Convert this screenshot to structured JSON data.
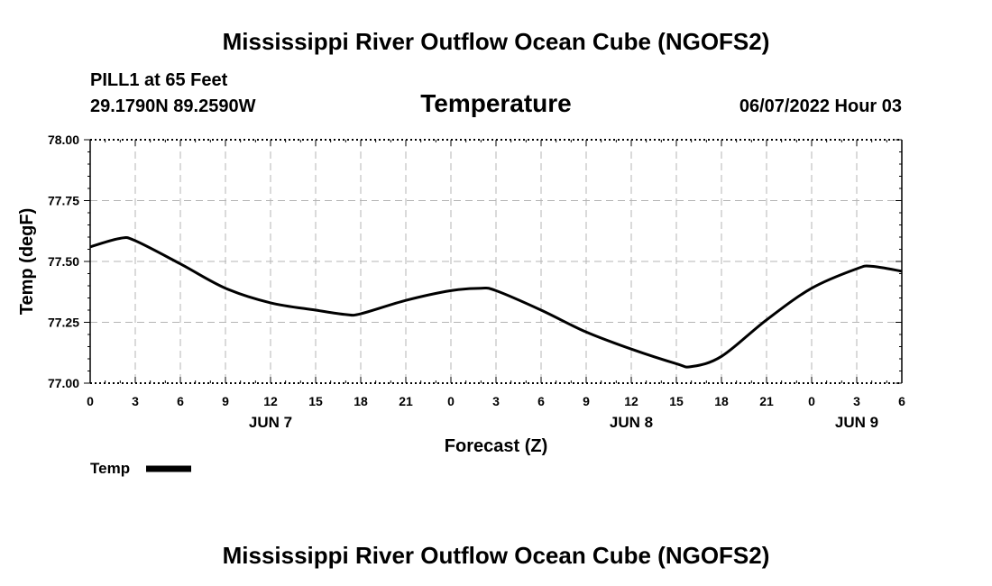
{
  "chart_data": {
    "type": "line",
    "header": {
      "main_title": "Mississippi River Outflow Ocean Cube (NGOFS2)",
      "station": "PILL1 at 65 Feet",
      "coordinates": "29.1790N  89.2590W",
      "title": "Temperature",
      "datetime": "06/07/2022 Hour 03"
    },
    "ylabel": "Temp (degF)",
    "xlabel": "Forecast (Z)",
    "ylim": [
      77.0,
      78.0
    ],
    "yticks": [
      77.0,
      77.25,
      77.5,
      77.75,
      78.0
    ],
    "ytick_labels": [
      "77.00",
      "77.25",
      "77.50",
      "77.75",
      "78.00"
    ],
    "xlim": [
      0,
      54
    ],
    "xticks": [
      0,
      3,
      6,
      9,
      12,
      15,
      18,
      21,
      24,
      27,
      30,
      33,
      36,
      39,
      42,
      45,
      48,
      51,
      54
    ],
    "xtick_labels": [
      "0",
      "3",
      "6",
      "9",
      "12",
      "15",
      "18",
      "21",
      "0",
      "3",
      "6",
      "9",
      "12",
      "15",
      "18",
      "21",
      "0",
      "3",
      "6"
    ],
    "day_labels": [
      {
        "x": 12,
        "label": "JUN 7"
      },
      {
        "x": 36,
        "label": "JUN 8"
      },
      {
        "x": 51,
        "label": "JUN 9"
      }
    ],
    "grid": true,
    "series": [
      {
        "name": "Temp",
        "color": "#000000",
        "x": [
          0,
          2,
          3,
          6,
          9,
          12,
          15,
          17,
          18,
          21,
          24,
          26,
          27,
          30,
          33,
          36,
          39,
          40,
          42,
          45,
          48,
          51,
          52,
          54
        ],
        "y": [
          77.56,
          77.595,
          77.585,
          77.49,
          77.39,
          77.33,
          77.3,
          77.282,
          77.285,
          77.34,
          77.38,
          77.39,
          77.38,
          77.3,
          77.21,
          77.14,
          77.08,
          77.068,
          77.11,
          77.26,
          77.39,
          77.47,
          77.48,
          77.46
        ]
      }
    ],
    "legend": {
      "label": "Temp",
      "placement": "bottom-left"
    }
  },
  "footer": {
    "repeat_title": "Mississippi River Outflow Ocean Cube (NGOFS2)"
  }
}
